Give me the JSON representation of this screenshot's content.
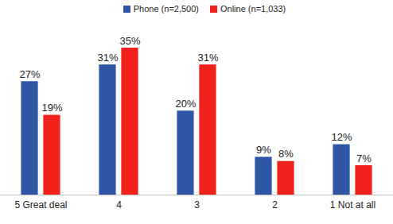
{
  "chart_data": {
    "type": "bar",
    "categories": [
      "5 Great deal",
      "4",
      "3",
      "2",
      "1 Not at all"
    ],
    "series": [
      {
        "name": "Phone (n=2,500)",
        "color": "#2f56a6",
        "values": [
          27,
          31,
          20,
          9,
          12
        ],
        "value_labels": [
          "27%",
          "31%",
          "20%",
          "9%",
          "12%"
        ]
      },
      {
        "name": "Online (n=1,033)",
        "color": "#f0201a",
        "values": [
          19,
          35,
          31,
          8,
          7
        ],
        "value_labels": [
          "19%",
          "35%",
          "31%",
          "8%",
          "7%"
        ]
      }
    ],
    "ylim": [
      0,
      35
    ],
    "legend": "top",
    "data_labels": true,
    "tick_labels": "x",
    "grid": false
  }
}
